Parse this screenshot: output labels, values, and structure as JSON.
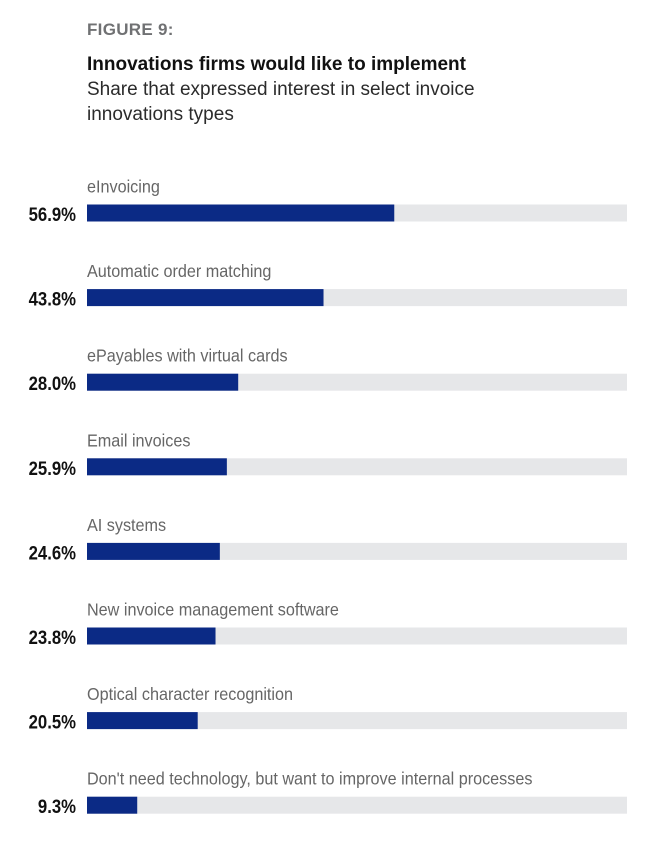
{
  "figure_label": "FIGURE 9:",
  "title": "Innovations firms would like to implement",
  "subtitle": "Share that expressed interest in select invoice innovations types",
  "colors": {
    "bar_fill": "#0b2a85",
    "bar_track": "#e6e7e9"
  },
  "chart_data": {
    "type": "bar",
    "orientation": "horizontal",
    "title": "Innovations firms would like to implement",
    "subtitle": "Share that expressed interest in select invoice innovations types",
    "xlabel": "",
    "ylabel": "",
    "xlim": [
      0,
      100
    ],
    "grid": false,
    "categories": [
      "eInvoicing",
      "Automatic order matching",
      "ePayables with virtual cards",
      "Email invoices",
      "AI systems",
      "New invoice management software",
      "Optical character recognition",
      "Don't need technology, but want to improve internal processes"
    ],
    "values": [
      56.9,
      43.8,
      28.0,
      25.9,
      24.6,
      23.8,
      20.5,
      9.3
    ],
    "value_labels": [
      "56.9%",
      "43.8%",
      "28.0%",
      "25.9%",
      "24.6%",
      "23.8%",
      "20.5%",
      "9.3%"
    ]
  }
}
